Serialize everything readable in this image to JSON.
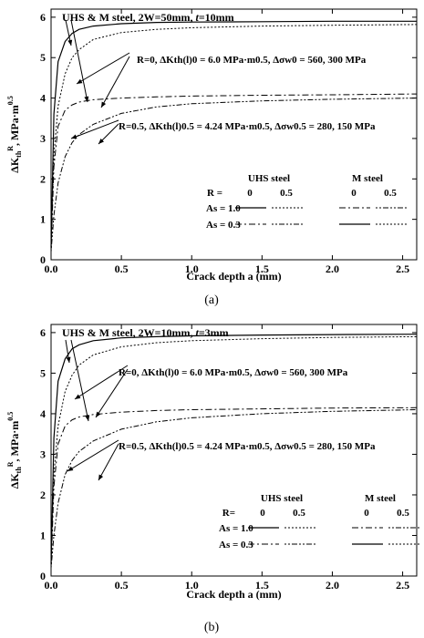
{
  "chart_data": [
    {
      "type": "line",
      "panel_label": "(a)",
      "title_parts": [
        "UHS & M steel, 2W=50mm, ",
        "t",
        "=10mm"
      ],
      "xlabel": "Crack depth a (mm)",
      "ylabel": "ΔKthR, MPa·m0.5",
      "xlim": [
        0,
        2.6
      ],
      "ylim": [
        0,
        6.2
      ],
      "xticks": [
        0.0,
        0.5,
        1.0,
        1.5,
        2.0,
        2.5
      ],
      "yticks": [
        0,
        1,
        2,
        3,
        4,
        5,
        6
      ],
      "annotation_r0": "R=0, ΔKth(l)0 = 6.0 MPa·m0.5, Δσw0 = 560, 300 MPa",
      "annotation_r05": "R=0.5, ΔKth(l)0.5 = 4.24 MPa·m0.5, Δσw0.5 = 280, 150 MPa",
      "legend": {
        "header_uhs": "UHS steel",
        "header_m": "M steel",
        "r_label": "R =",
        "r_values": [
          "0",
          "0.5",
          "0",
          "0.5"
        ],
        "rows": [
          "As = 1.0",
          "As = 0.3"
        ]
      },
      "series": [
        {
          "x": [
            0.0,
            0.02,
            0.05,
            0.1,
            0.15,
            0.2,
            0.3,
            0.5,
            0.75,
            1.0,
            1.5,
            2.0,
            2.6
          ],
          "values": [
            0.3,
            3.6,
            4.9,
            5.4,
            5.6,
            5.7,
            5.78,
            5.84,
            5.87,
            5.88,
            5.89,
            5.9,
            5.9
          ]
        },
        {
          "x": [
            0.0,
            0.02,
            0.05,
            0.1,
            0.15,
            0.2,
            0.3,
            0.5,
            0.75,
            1.0,
            1.5,
            2.0,
            2.6
          ],
          "values": [
            0.3,
            2.6,
            3.8,
            4.6,
            5.0,
            5.2,
            5.45,
            5.62,
            5.7,
            5.74,
            5.78,
            5.8,
            5.82
          ]
        },
        {
          "x": [
            0.0,
            0.02,
            0.05,
            0.1,
            0.15,
            0.2,
            0.3,
            0.5,
            0.75,
            1.0,
            1.5,
            2.0,
            2.6
          ],
          "values": [
            0.2,
            2.3,
            3.3,
            3.7,
            3.83,
            3.9,
            3.96,
            4.0,
            4.03,
            4.05,
            4.07,
            4.08,
            4.1
          ]
        },
        {
          "x": [
            0.0,
            0.02,
            0.05,
            0.1,
            0.15,
            0.2,
            0.3,
            0.5,
            0.75,
            1.0,
            1.5,
            2.0,
            2.6
          ],
          "values": [
            0.2,
            1.1,
            1.9,
            2.55,
            2.9,
            3.1,
            3.35,
            3.62,
            3.78,
            3.86,
            3.93,
            3.97,
            4.0
          ]
        }
      ]
    },
    {
      "type": "line",
      "panel_label": "(b)",
      "title_parts": [
        "UHS & M steel, 2W=10mm, ",
        "t",
        "=3mm"
      ],
      "xlabel": "Crack depth a (mm)",
      "ylabel": "ΔKthR, MPa·m0.5",
      "xlim": [
        0,
        2.6
      ],
      "ylim": [
        0,
        6.2
      ],
      "xticks": [
        0.0,
        0.5,
        1.0,
        1.5,
        2.0,
        2.5
      ],
      "yticks": [
        0,
        1,
        2,
        3,
        4,
        5,
        6
      ],
      "annotation_r0": "R=0, ΔKth(l)0 = 6.0 MPa·m0.5, Δσw0 = 560, 300 MPa",
      "annotation_r05": "R=0.5, ΔKth(l)0.5 = 4.24 MPa·m0.5, Δσw0.5 = 280, 150 MPa",
      "legend": {
        "header_uhs": "UHS steel",
        "header_m": "M steel",
        "r_label": "R=",
        "r_values": [
          "0",
          "0.5",
          "0",
          "0.5"
        ],
        "rows": [
          "As = 1.0",
          "As = 0.3"
        ]
      },
      "series": [
        {
          "x": [
            0.0,
            0.02,
            0.05,
            0.1,
            0.15,
            0.2,
            0.3,
            0.5,
            0.75,
            1.0,
            1.5,
            2.0,
            2.6
          ],
          "values": [
            0.3,
            3.4,
            4.8,
            5.35,
            5.6,
            5.7,
            5.8,
            5.87,
            5.9,
            5.92,
            5.94,
            5.95,
            5.96
          ]
        },
        {
          "x": [
            0.0,
            0.02,
            0.05,
            0.1,
            0.15,
            0.2,
            0.3,
            0.5,
            0.75,
            1.0,
            1.5,
            2.0,
            2.6
          ],
          "values": [
            0.3,
            2.5,
            3.7,
            4.55,
            4.95,
            5.2,
            5.45,
            5.65,
            5.75,
            5.8,
            5.85,
            5.88,
            5.9
          ]
        },
        {
          "x": [
            0.0,
            0.02,
            0.05,
            0.1,
            0.15,
            0.2,
            0.3,
            0.5,
            0.75,
            1.0,
            1.5,
            2.0,
            2.6
          ],
          "values": [
            0.2,
            2.2,
            3.25,
            3.7,
            3.85,
            3.92,
            3.98,
            4.04,
            4.08,
            4.1,
            4.12,
            4.14,
            4.15
          ]
        },
        {
          "x": [
            0.0,
            0.02,
            0.05,
            0.1,
            0.15,
            0.2,
            0.3,
            0.5,
            0.75,
            1.0,
            1.5,
            2.0,
            2.6
          ],
          "values": [
            0.2,
            1.0,
            1.8,
            2.5,
            2.85,
            3.07,
            3.33,
            3.62,
            3.8,
            3.9,
            4.0,
            4.06,
            4.1
          ]
        }
      ]
    }
  ]
}
